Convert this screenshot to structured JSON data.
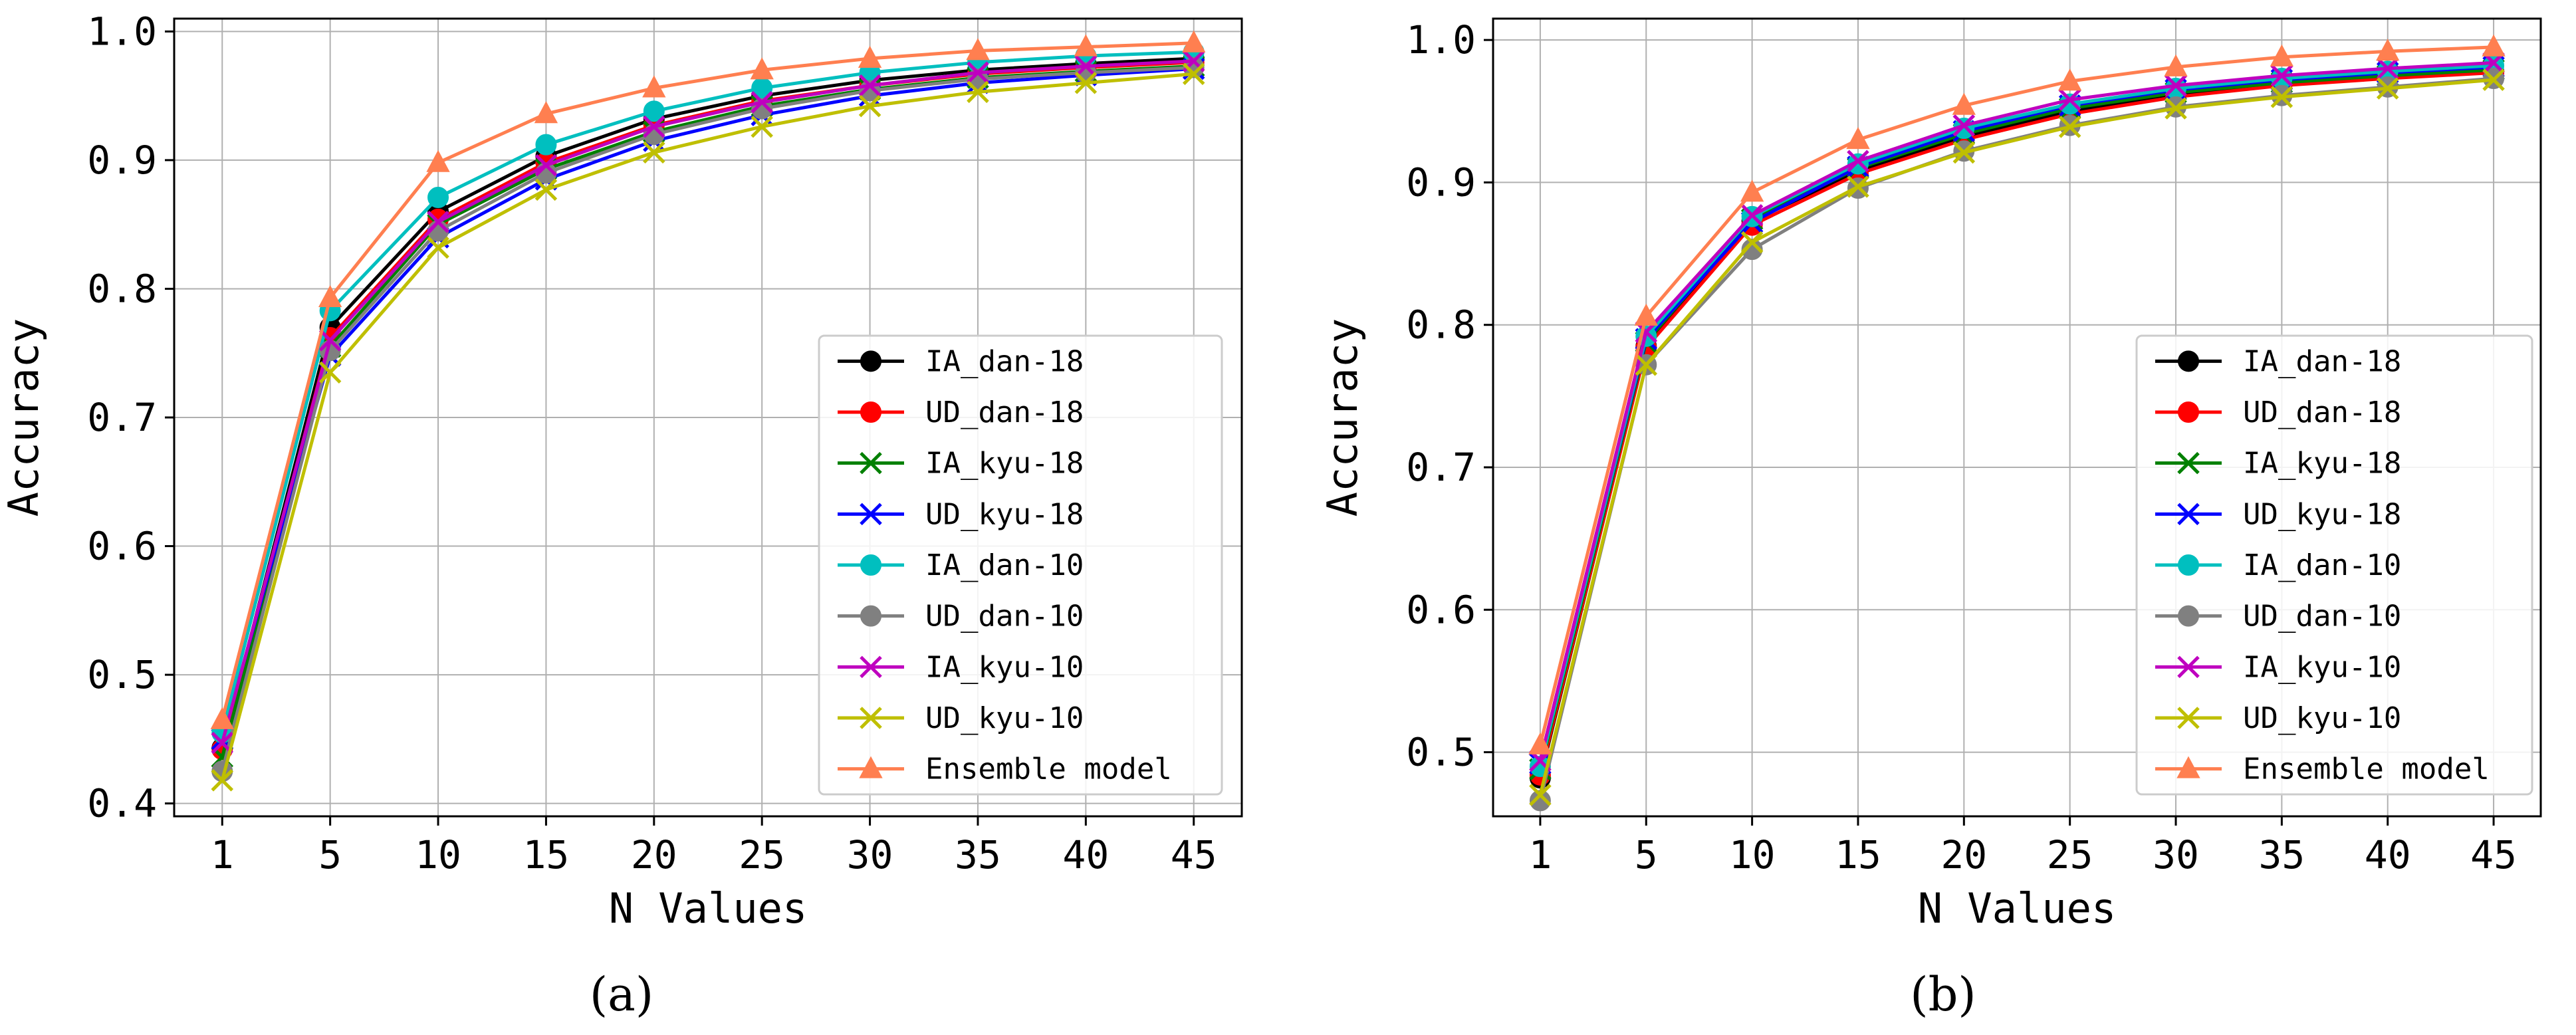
{
  "chart_data": [
    {
      "type": "line",
      "panel_label": "a",
      "xlabel": "N Values",
      "ylabel": "Accuracy",
      "categories": [
        1,
        5,
        10,
        15,
        20,
        25,
        30,
        35,
        40,
        45
      ],
      "ylim": [
        0.39,
        1.01
      ],
      "yticks": [
        0.4,
        0.5,
        0.6,
        0.7,
        0.8,
        0.9,
        1.0
      ],
      "grid": true,
      "legend_position": "lower-right",
      "series": [
        {
          "name": "IA_dan-18",
          "color": "#000000",
          "marker": "o",
          "values": [
            0.443,
            0.77,
            0.86,
            0.903,
            0.932,
            0.95,
            0.962,
            0.97,
            0.975,
            0.979
          ]
        },
        {
          "name": "UD_dan-18",
          "color": "#ff0000",
          "marker": "o",
          "values": [
            0.442,
            0.762,
            0.854,
            0.898,
            0.927,
            0.946,
            0.958,
            0.967,
            0.972,
            0.976
          ]
        },
        {
          "name": "IA_kyu-18",
          "color": "#008000",
          "marker": "x",
          "values": [
            0.436,
            0.755,
            0.85,
            0.893,
            0.922,
            0.942,
            0.955,
            0.964,
            0.969,
            0.973
          ]
        },
        {
          "name": "UD_kyu-18",
          "color": "#0000ff",
          "marker": "x",
          "values": [
            0.45,
            0.748,
            0.84,
            0.885,
            0.915,
            0.935,
            0.95,
            0.96,
            0.966,
            0.971
          ]
        },
        {
          "name": "IA_dan-10",
          "color": "#00bfbf",
          "marker": "o",
          "values": [
            0.455,
            0.783,
            0.871,
            0.912,
            0.938,
            0.956,
            0.968,
            0.976,
            0.981,
            0.984
          ]
        },
        {
          "name": "UD_dan-10",
          "color": "#808080",
          "marker": "o",
          "values": [
            0.425,
            0.752,
            0.845,
            0.89,
            0.92,
            0.94,
            0.954,
            0.963,
            0.968,
            0.972
          ]
        },
        {
          "name": "IA_kyu-10",
          "color": "#bf00bf",
          "marker": "x",
          "values": [
            0.447,
            0.76,
            0.852,
            0.896,
            0.926,
            0.945,
            0.958,
            0.968,
            0.973,
            0.977
          ]
        },
        {
          "name": "UD_kyu-10",
          "color": "#bfbf00",
          "marker": "x",
          "values": [
            0.418,
            0.735,
            0.832,
            0.877,
            0.906,
            0.926,
            0.942,
            0.953,
            0.96,
            0.967
          ]
        },
        {
          "name": "Ensemble model",
          "color": "#ff7f50",
          "marker": "^",
          "values": [
            0.465,
            0.793,
            0.898,
            0.936,
            0.956,
            0.97,
            0.979,
            0.985,
            0.988,
            0.991
          ]
        }
      ]
    },
    {
      "type": "line",
      "panel_label": "b",
      "xlabel": "N Values",
      "ylabel": "Accuracy",
      "categories": [
        1,
        5,
        10,
        15,
        20,
        25,
        30,
        35,
        40,
        45
      ],
      "ylim": [
        0.455,
        1.015
      ],
      "yticks": [
        0.5,
        0.6,
        0.7,
        0.8,
        0.9,
        1.0
      ],
      "grid": true,
      "legend_position": "lower-right",
      "series": [
        {
          "name": "IA_dan-18",
          "color": "#000000",
          "marker": "o",
          "values": [
            0.482,
            0.785,
            0.873,
            0.908,
            0.932,
            0.95,
            0.961,
            0.969,
            0.974,
            0.978
          ]
        },
        {
          "name": "UD_dan-18",
          "color": "#ff0000",
          "marker": "o",
          "values": [
            0.484,
            0.784,
            0.87,
            0.906,
            0.93,
            0.948,
            0.96,
            0.968,
            0.973,
            0.977
          ]
        },
        {
          "name": "IA_kyu-18",
          "color": "#008000",
          "marker": "x",
          "values": [
            0.488,
            0.788,
            0.874,
            0.91,
            0.934,
            0.952,
            0.963,
            0.97,
            0.975,
            0.979
          ]
        },
        {
          "name": "UD_kyu-18",
          "color": "#0000ff",
          "marker": "x",
          "values": [
            0.492,
            0.79,
            0.872,
            0.911,
            0.936,
            0.954,
            0.965,
            0.972,
            0.977,
            0.981
          ]
        },
        {
          "name": "IA_dan-10",
          "color": "#00bfbf",
          "marker": "o",
          "values": [
            0.49,
            0.792,
            0.876,
            0.913,
            0.938,
            0.955,
            0.966,
            0.973,
            0.978,
            0.982
          ]
        },
        {
          "name": "UD_dan-10",
          "color": "#808080",
          "marker": "o",
          "values": [
            0.466,
            0.772,
            0.853,
            0.896,
            0.922,
            0.94,
            0.953,
            0.961,
            0.967,
            0.973
          ]
        },
        {
          "name": "IA_kyu-10",
          "color": "#bf00bf",
          "marker": "x",
          "values": [
            0.494,
            0.795,
            0.877,
            0.915,
            0.94,
            0.958,
            0.968,
            0.975,
            0.98,
            0.984
          ]
        },
        {
          "name": "UD_kyu-10",
          "color": "#bfbf00",
          "marker": "x",
          "values": [
            0.47,
            0.772,
            0.858,
            0.897,
            0.921,
            0.939,
            0.952,
            0.96,
            0.966,
            0.972
          ]
        },
        {
          "name": "Ensemble model",
          "color": "#ff7f50",
          "marker": "^",
          "values": [
            0.505,
            0.806,
            0.893,
            0.93,
            0.954,
            0.971,
            0.981,
            0.988,
            0.992,
            0.995
          ]
        }
      ]
    }
  ],
  "captions": [
    "(a)",
    "(b)"
  ]
}
